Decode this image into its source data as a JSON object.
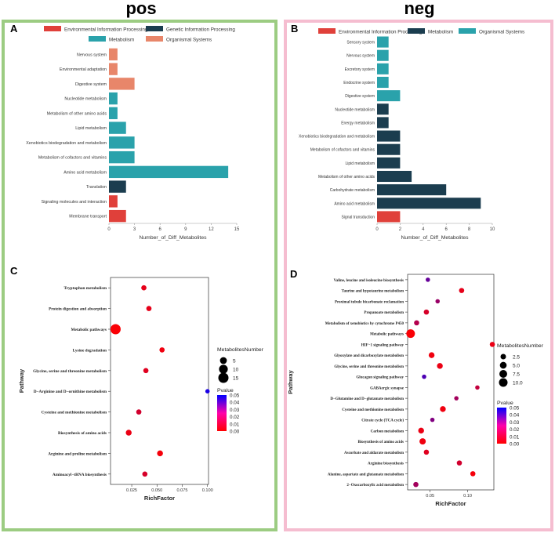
{
  "panels": {
    "left_title": "pos",
    "right_title": "neg",
    "left_frame_color": "#9ccc82",
    "right_frame_color": "#f5bdd0"
  },
  "colors": {
    "env": "#e0403a",
    "gen": "#1b3d4f",
    "met": "#2aa2ab",
    "org": "#e8866a",
    "pval_low": "#ff0000",
    "pval_high": "#0000ff"
  },
  "chart_data": [
    {
      "id": "A",
      "type": "bar",
      "orientation": "horizontal",
      "panel_label": "A",
      "legend": [
        {
          "name": "Environmental Information Processing",
          "color_key": "env"
        },
        {
          "name": "Genetic Information Processing",
          "color_key": "gen"
        },
        {
          "name": "Metabolism",
          "color_key": "met"
        },
        {
          "name": "Organismal Systems",
          "color_key": "org"
        }
      ],
      "categories": [
        "Nervous system",
        "Environmental adaptation",
        "Digestive system",
        "Nucleotide metabolism",
        "Metabolism of other amino acids",
        "Lipid metabolism",
        "Xenobiotics biodegradation and metabolism",
        "Metabolism of cofactors and vitamins",
        "Amino acid metabolism",
        "Translation",
        "Signaling molecules and interaction",
        "Membrane transport"
      ],
      "values": [
        1,
        1,
        3,
        1,
        1,
        2,
        3,
        3,
        14,
        2,
        1,
        2
      ],
      "groups": [
        "org",
        "org",
        "org",
        "met",
        "met",
        "met",
        "met",
        "met",
        "met",
        "gen",
        "env",
        "env"
      ],
      "xlabel": "Number_of_Diff_Metabolites",
      "xlim": [
        0,
        15
      ],
      "xticks": [
        "0",
        "3",
        "6",
        "9",
        "12",
        "15"
      ]
    },
    {
      "id": "B",
      "type": "bar",
      "orientation": "horizontal",
      "panel_label": "B",
      "legend": [
        {
          "name": "Environmental Information Processing",
          "color_key": "env"
        },
        {
          "name": "Metabolism",
          "color_key": "gen"
        },
        {
          "name": "Organismal Systems",
          "color_key": "met"
        }
      ],
      "categories": [
        "Sensory system",
        "Nervous system",
        "Excretory system",
        "Endocrine system",
        "Digestive system",
        "Nucleotide metabolism",
        "Energy metabolism",
        "Xenobiotics biodegradation and metabolism",
        "Metabolism of cofactors and vitamins",
        "Lipid metabolism",
        "Metabolism of other amino acids",
        "Carbohydrate metabolism",
        "Amino acid metabolism",
        "Signal transduction"
      ],
      "values": [
        1,
        1,
        1,
        1,
        2,
        1,
        1,
        2,
        2,
        2,
        3,
        6,
        9,
        2
      ],
      "groups": [
        "met",
        "met",
        "met",
        "met",
        "met",
        "gen",
        "gen",
        "gen",
        "gen",
        "gen",
        "gen",
        "gen",
        "gen",
        "env"
      ],
      "xlabel": "Number_of_Diff_Metabolites",
      "xlim": [
        0,
        10
      ],
      "xticks": [
        "0",
        "2",
        "4",
        "6",
        "8",
        "10"
      ]
    },
    {
      "id": "C",
      "type": "scatter",
      "panel_label": "C",
      "ylabel": "Pathway",
      "xlabel": "RichFactor",
      "xlim": [
        0.004,
        0.101
      ],
      "xticks": [
        {
          "v": 0.025,
          "label": "0.025"
        },
        {
          "v": 0.05,
          "label": "0.050"
        },
        {
          "v": 0.075,
          "label": "0.075"
        },
        {
          "v": 0.1,
          "label": "0.100"
        }
      ],
      "pathways": [
        "Tryptophan metabolism",
        "Protein digestion and absorption",
        "Metabolic pathways",
        "Lysine degradation",
        "Glycine, serine and threonine metabolism",
        "D−Arginine and D−ornithine metabolism",
        "Cysteine and methionine metabolism",
        "Biosynthesis of amino acids",
        "Arginine and proline metabolism",
        "Aminoacyl−tRNA biosynthesis"
      ],
      "rich_factor": [
        0.037,
        0.042,
        0.009,
        0.055,
        0.039,
        0.1,
        0.032,
        0.022,
        0.053,
        0.038
      ],
      "number": [
        2,
        2,
        15,
        2,
        2,
        1,
        2,
        3,
        3,
        2
      ],
      "pvalue": [
        0.005,
        0.005,
        0.001,
        0.003,
        0.006,
        0.045,
        0.009,
        0.004,
        0.002,
        0.008
      ],
      "size_legend_title": "MetabolitesNumber",
      "size_legend": [
        {
          "v": 5,
          "label": "5"
        },
        {
          "v": 10,
          "label": "10"
        },
        {
          "v": 15,
          "label": "15"
        }
      ],
      "color_legend_title": "Pvalue",
      "color_legend_ticks": [
        "0.05",
        "0.04",
        "0.03",
        "0.02",
        "0.01",
        "0.00"
      ]
    },
    {
      "id": "D",
      "type": "scatter",
      "panel_label": "D",
      "ylabel": "Pathway",
      "xlabel": "RichFactor",
      "xlim": [
        0.02,
        0.135
      ],
      "xticks": [
        {
          "v": 0.05,
          "label": "0.05"
        },
        {
          "v": 0.1,
          "label": "0.10"
        }
      ],
      "pathways": [
        "Valine, leucine and isoleucine biosynthesis",
        "Taurine and hypotaurine metabolism",
        "Proximal tubule bicarbonate reclamation",
        "Propanoate metabolism",
        "Metabolism of xenobiotics by cytochrome P450",
        "Metabolic pathways",
        "HIF−1 signaling pathway",
        "Glyoxylate and dicarboxylate metabolism",
        "Glycine, serine and threonine metabolism",
        "Glucagon signaling pathway",
        "GABAergic synapse",
        "D−Glutamine and D−glutamate metabolism",
        "Cysteine and methionine metabolism",
        "Citrate cycle (TCA cycle)",
        "Carbon metabolism",
        "Biosynthesis of amino acids",
        "Ascorbate and aldarate metabolism",
        "Arginine biosynthesis",
        "Alanine, aspartate and glutamate metabolism",
        "2−Oxocarboxylic acid metabolism"
      ],
      "rich_factor": [
        0.047,
        0.092,
        0.06,
        0.045,
        0.032,
        0.024,
        0.133,
        0.052,
        0.063,
        0.042,
        0.113,
        0.085,
        0.067,
        0.053,
        0.038,
        0.04,
        0.045,
        0.089,
        0.107,
        0.031
      ],
      "number": [
        1,
        2,
        1,
        2,
        2,
        10,
        2,
        3,
        3,
        1,
        1,
        1,
        3,
        1,
        3,
        4,
        2,
        2,
        2,
        2
      ],
      "pvalue": [
        0.03,
        0.005,
        0.02,
        0.008,
        0.015,
        0.001,
        0.004,
        0.003,
        0.004,
        0.035,
        0.012,
        0.018,
        0.003,
        0.025,
        0.004,
        0.003,
        0.006,
        0.009,
        0.002,
        0.018
      ],
      "size_legend_title": "MetabolitesNumber",
      "size_legend": [
        {
          "v": 2.5,
          "label": "2.5"
        },
        {
          "v": 5,
          "label": "5.0"
        },
        {
          "v": 7.5,
          "label": "7.5"
        },
        {
          "v": 10,
          "label": "10.0"
        }
      ],
      "color_legend_title": "Pvalue",
      "color_legend_ticks": [
        "0.05",
        "0.04",
        "0.03",
        "0.02",
        "0.01",
        "0.00"
      ]
    }
  ]
}
